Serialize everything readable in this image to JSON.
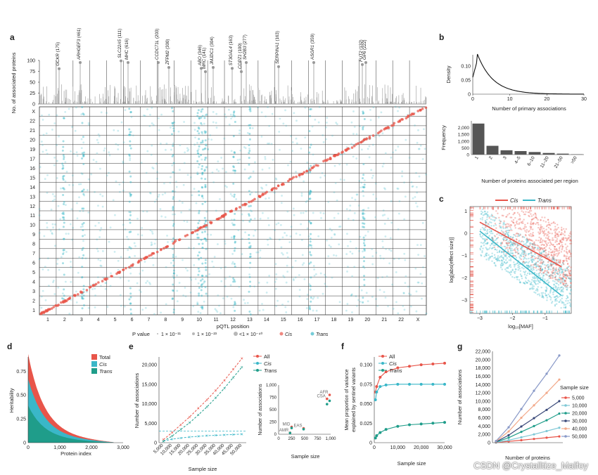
{
  "panel_letters": [
    "a",
    "b",
    "c",
    "d",
    "e",
    "f",
    "g"
  ],
  "colors": {
    "cis": "#e8554a",
    "trans": "#3ab7c8",
    "total": "#e8554a",
    "all": "#e8554a",
    "grid": "#dddddd",
    "bar": "#555555"
  },
  "chart_data": [
    {
      "id": "a",
      "type": "scatter",
      "title": "",
      "xlabel": "pQTL position",
      "ylabel_top": "No. of associated proteins",
      "top_yticks": [
        "0",
        "25",
        "50",
        "75",
        "100"
      ],
      "x_chromosomes": [
        "1",
        "2",
        "3",
        "4",
        "5",
        "6",
        "7",
        "8",
        "9",
        "10",
        "11",
        "12",
        "13",
        "14",
        "15",
        "16",
        "17",
        "18",
        "19",
        "20",
        "21",
        "22",
        "X"
      ],
      "y_chromosomes": [
        "1",
        "2",
        "3",
        "4",
        "5",
        "6",
        "7",
        "8",
        "9",
        "10",
        "11",
        "12",
        "13",
        "14",
        "15",
        "16",
        "17",
        "19",
        "20",
        "21",
        "22",
        "X"
      ],
      "genes": [
        {
          "name": "GCKR",
          "count": "(175)"
        },
        {
          "name": "ARHGEF3",
          "count": "(461)"
        },
        {
          "name": "SLC22A5",
          "count": "(111)"
        },
        {
          "name": "MHC",
          "count": "(616)"
        },
        {
          "name": "CCDC71L",
          "count": "(203)"
        },
        {
          "name": "ZFPM2",
          "count": "(300)"
        },
        {
          "name": "ABO",
          "count": "(346)"
        },
        {
          "name": "MRC",
          "count": "(141)"
        },
        {
          "name": "JMJDC1",
          "count": "(304)"
        },
        {
          "name": "ST3GAL4",
          "count": "(163)"
        },
        {
          "name": "COPZ1",
          "count": "(100)"
        },
        {
          "name": "SH2B3",
          "count": "(277)"
        },
        {
          "name": "SERPINA1",
          "count": "(163)"
        },
        {
          "name": "ASGR1",
          "count": "(359)"
        },
        {
          "name": "FUT2",
          "count": "(132)"
        },
        {
          "name": "GP6",
          "count": "(222)"
        }
      ],
      "legend": {
        "title": "P value",
        "items": [
          "1 × 10⁻¹¹",
          "1 × 10⁻²³",
          "<1 × 10⁻⁴⁰",
          "Cis",
          "Trans"
        ]
      }
    },
    {
      "id": "b",
      "type": "line",
      "top": {
        "xlabel": "Number of primary associations",
        "ylabel": "Density",
        "xticks": [
          "0",
          "10",
          "20",
          "30"
        ],
        "yticks": [
          "0",
          "0.05",
          "0.10"
        ]
      },
      "bottom": {
        "type": "bar",
        "xlabel": "Number of proteins associated per region",
        "ylabel": "Frequency",
        "categories": [
          "1",
          "2",
          "3",
          "4–5",
          "6–10",
          "11–20",
          "21–50",
          ">50"
        ],
        "values": [
          2300,
          650,
          320,
          260,
          190,
          120,
          70,
          25
        ],
        "yticks": [
          "0",
          "500",
          "1,000",
          "1,500",
          "2,000"
        ],
        "ylim": [
          0,
          2500
        ]
      }
    },
    {
      "id": "c",
      "type": "scatter",
      "xlabel": "log₁₀[MAF]",
      "ylabel": "log[abs(effect size)]",
      "xticks": [
        "−3",
        "−2",
        "−1"
      ],
      "yticks": [
        "1",
        "0",
        "−1",
        "−2",
        "−3"
      ],
      "legend": [
        "Cis",
        "Trans"
      ],
      "cis_fit": {
        "x": [
          -3,
          -0.5
        ],
        "y": [
          0.5,
          -1.5
        ]
      },
      "trans_fit": {
        "x": [
          -3,
          -0.5
        ],
        "y": [
          0.1,
          -2.8
        ]
      }
    },
    {
      "id": "d",
      "type": "area",
      "xlabel": "Protein index",
      "ylabel": "Heritability",
      "xticks": [
        "0",
        "1,000",
        "2,000",
        "3,000"
      ],
      "yticks": [
        "0",
        "0.25",
        "0.50",
        "0.75"
      ],
      "ylim": [
        0,
        0.9
      ],
      "legend": [
        "Total",
        "Cis",
        "Trans"
      ]
    },
    {
      "id": "e",
      "type": "line",
      "xlabel": "Sample size",
      "ylabel": "Number of associations",
      "categories": [
        "5,000",
        "10,000",
        "15,000",
        "20,000",
        "25,000",
        "30,000",
        "35,000",
        "40,000",
        "45,000",
        "50,000"
      ],
      "yticks": [
        "0",
        "5,000",
        "10,000",
        "15,000",
        "20,000"
      ],
      "ylim": [
        0,
        22000
      ],
      "series": [
        {
          "name": "All",
          "values": [
            800,
            2600,
            4600,
            6600,
            8800,
            11000,
            13400,
            16000,
            18800,
            21600
          ]
        },
        {
          "name": "Cis",
          "values": [
            400,
            900,
            1200,
            1450,
            1650,
            1800,
            1900,
            2000,
            2100,
            2200
          ]
        },
        {
          "name": "Trans",
          "values": [
            400,
            1700,
            3400,
            5100,
            7100,
            9200,
            11500,
            14000,
            16700,
            19400
          ]
        }
      ],
      "legend": [
        "All",
        "Cis",
        "Trans"
      ],
      "inset": {
        "xlabel": "Sample size",
        "ylabel": "Number of associations",
        "yticks": [
          "0",
          "250",
          "500",
          "750",
          "1,000"
        ],
        "xticks": [
          "0",
          "250",
          "500",
          "750",
          "1,000"
        ],
        "points": [
          {
            "label": "AFR",
            "x": 980,
            "y": 800
          },
          {
            "label": "CSA",
            "x": 930,
            "y": 720
          },
          {
            "label": "MID",
            "x": 250,
            "y": 150
          },
          {
            "label": "EAS",
            "x": 480,
            "y": 120
          },
          {
            "label": "AMR",
            "x": 220,
            "y": 30
          }
        ]
      }
    },
    {
      "id": "f",
      "type": "line",
      "xlabel": "Sample size",
      "ylabel": "Mean proportion of variance explained by sentinel variants",
      "xticks": [
        "0",
        "10,000",
        "20,000",
        "30,000"
      ],
      "yticks": [
        "0",
        "0.025",
        "0.050",
        "0.075",
        "0.100"
      ],
      "ylim": [
        0,
        0.11
      ],
      "series": [
        {
          "name": "All",
          "x": [
            500,
            1000,
            2500,
            5000,
            10000,
            15000,
            20000,
            25000,
            30000
          ],
          "values": [
            0.065,
            0.072,
            0.084,
            0.091,
            0.096,
            0.098,
            0.1,
            0.101,
            0.102
          ]
        },
        {
          "name": "Cis",
          "x": [
            500,
            1000,
            2500,
            5000,
            10000,
            15000,
            20000,
            25000,
            30000
          ],
          "values": [
            0.055,
            0.065,
            0.072,
            0.074,
            0.075,
            0.075,
            0.075,
            0.075,
            0.075
          ]
        },
        {
          "name": "Trans",
          "x": [
            500,
            1000,
            2500,
            5000,
            10000,
            15000,
            20000,
            25000,
            30000
          ],
          "values": [
            0.006,
            0.009,
            0.013,
            0.017,
            0.021,
            0.023,
            0.024,
            0.025,
            0.026
          ]
        }
      ],
      "legend": [
        "All",
        "Cis",
        "Trans"
      ]
    },
    {
      "id": "g",
      "type": "line",
      "xlabel": "Number of proteins",
      "ylabel": "Number of associations",
      "yticks": [
        "0",
        "2,000",
        "4,000",
        "6,000",
        "8,000",
        "10,000",
        "12,000",
        "14,000",
        "16,000",
        "18,000",
        "20,000",
        "22,000"
      ],
      "ylim": [
        0,
        22000
      ],
      "legend_title": "Sample size",
      "series": [
        {
          "name": "5,000",
          "values": [
            50,
            300,
            600,
            900,
            1200,
            1500
          ]
        },
        {
          "name": "10,000",
          "values": [
            100,
            600,
            1300,
            2000,
            2800,
            3600
          ]
        },
        {
          "name": "20,000",
          "values": [
            150,
            1200,
            2600,
            4000,
            5400,
            7000
          ]
        },
        {
          "name": "30,000",
          "values": [
            200,
            1800,
            3900,
            5900,
            7900,
            10000
          ]
        },
        {
          "name": "40,000",
          "values": [
            300,
            2700,
            6000,
            9000,
            12000,
            15200
          ]
        },
        {
          "name": "50,000",
          "values": [
            400,
            3700,
            8100,
            12500,
            16600,
            21000
          ]
        }
      ]
    }
  ],
  "watermark": "CSDN @Crystalltize_Malfoy"
}
